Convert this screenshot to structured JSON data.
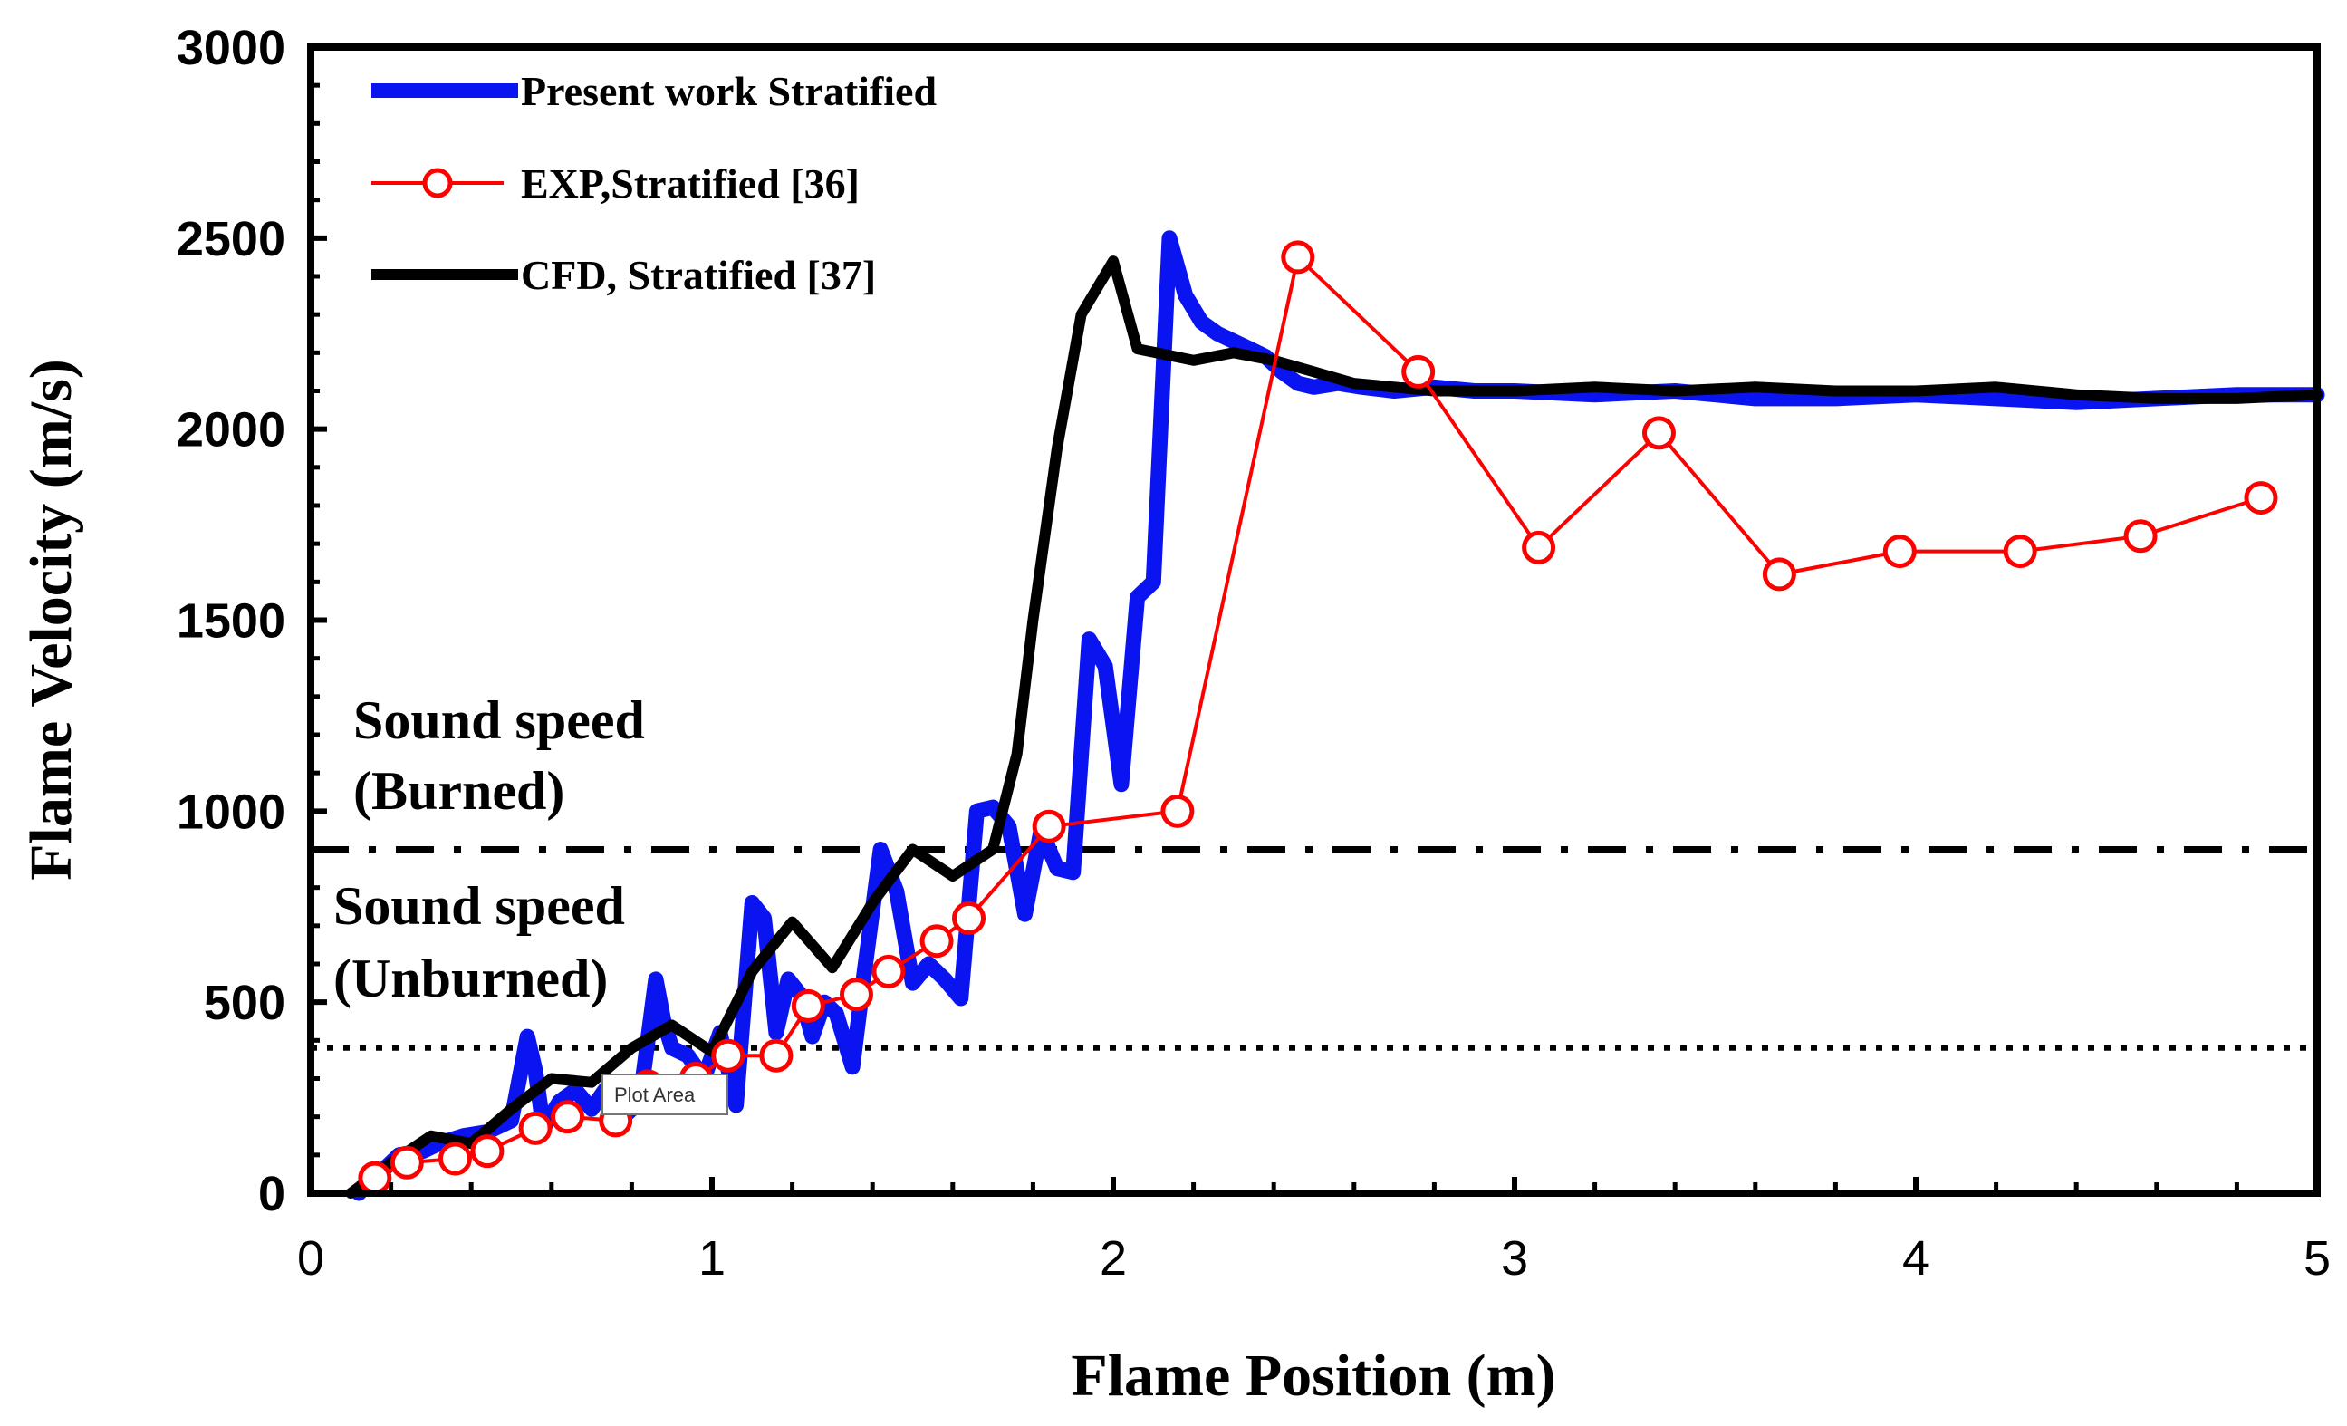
{
  "chart_data": {
    "type": "line",
    "title": "",
    "xlabel": "Flame Position (m)",
    "ylabel": "Flame Velocity (m/s)",
    "xlim": [
      0,
      5
    ],
    "ylim": [
      0,
      3000
    ],
    "xticks": [
      0,
      1,
      2,
      3,
      4,
      5
    ],
    "yticks": [
      0,
      500,
      1000,
      1500,
      2000,
      2500,
      3000
    ],
    "grid": false,
    "legend_position": "top-left",
    "series": [
      {
        "name": "Present work Stratified",
        "color": "#0a14f0",
        "style": "thick-line",
        "x": [
          0.12,
          0.18,
          0.22,
          0.28,
          0.32,
          0.38,
          0.44,
          0.5,
          0.54,
          0.56,
          0.58,
          0.62,
          0.66,
          0.7,
          0.74,
          0.78,
          0.82,
          0.86,
          0.88,
          0.9,
          0.94,
          0.98,
          1.02,
          1.06,
          1.1,
          1.13,
          1.16,
          1.19,
          1.22,
          1.25,
          1.28,
          1.31,
          1.35,
          1.38,
          1.42,
          1.46,
          1.5,
          1.54,
          1.58,
          1.62,
          1.66,
          1.7,
          1.74,
          1.78,
          1.82,
          1.86,
          1.9,
          1.94,
          1.98,
          2.02,
          2.06,
          2.1,
          2.14,
          2.18,
          2.22,
          2.26,
          2.3,
          2.34,
          2.38,
          2.42,
          2.46,
          2.5,
          2.56,
          2.62,
          2.7,
          2.8,
          2.9,
          3.0,
          3.2,
          3.4,
          3.6,
          3.8,
          4.0,
          4.2,
          4.4,
          4.6,
          4.8,
          5.0
        ],
        "values": [
          0,
          60,
          100,
          110,
          130,
          150,
          160,
          190,
          410,
          320,
          170,
          240,
          270,
          220,
          280,
          200,
          240,
          560,
          450,
          380,
          360,
          300,
          420,
          230,
          760,
          720,
          420,
          560,
          520,
          410,
          500,
          470,
          330,
          580,
          900,
          790,
          550,
          600,
          560,
          510,
          1000,
          1010,
          960,
          730,
          950,
          850,
          840,
          1450,
          1380,
          1070,
          1560,
          1600,
          2500,
          2350,
          2280,
          2250,
          2230,
          2210,
          2190,
          2150,
          2120,
          2110,
          2120,
          2110,
          2100,
          2110,
          2100,
          2100,
          2090,
          2100,
          2080,
          2080,
          2090,
          2080,
          2070,
          2080,
          2090,
          2090
        ]
      },
      {
        "name": "EXP,Stratified [36]",
        "color": "#ff0000",
        "style": "line-open-circle",
        "x": [
          0.16,
          0.24,
          0.36,
          0.44,
          0.56,
          0.64,
          0.76,
          0.84,
          0.96,
          1.04,
          1.16,
          1.24,
          1.36,
          1.44,
          1.56,
          1.64,
          1.84,
          2.16,
          2.46,
          2.76,
          3.06,
          3.36,
          3.66,
          3.96,
          4.26,
          4.56,
          4.86
        ],
        "values": [
          40,
          80,
          90,
          110,
          170,
          200,
          190,
          280,
          300,
          360,
          360,
          490,
          520,
          580,
          660,
          720,
          960,
          1000,
          2450,
          2150,
          1690,
          1990,
          1620,
          1680,
          1680,
          1720,
          1820
        ]
      },
      {
        "name": "CFD, Stratified [37]",
        "color": "#000000",
        "style": "thick-line",
        "x": [
          0.1,
          0.2,
          0.3,
          0.4,
          0.5,
          0.6,
          0.7,
          0.8,
          0.9,
          1.0,
          1.1,
          1.2,
          1.3,
          1.4,
          1.5,
          1.6,
          1.7,
          1.76,
          1.8,
          1.86,
          1.92,
          2.0,
          2.06,
          2.2,
          2.3,
          2.4,
          2.5,
          2.6,
          2.8,
          3.0,
          3.2,
          3.4,
          3.6,
          3.8,
          4.0,
          4.2,
          4.4,
          4.6,
          4.8,
          5.0
        ],
        "values": [
          0,
          80,
          150,
          130,
          220,
          300,
          290,
          380,
          440,
          370,
          580,
          710,
          590,
          760,
          900,
          830,
          900,
          1150,
          1500,
          1950,
          2300,
          2440,
          2210,
          2180,
          2200,
          2180,
          2150,
          2120,
          2100,
          2100,
          2110,
          2100,
          2110,
          2100,
          2100,
          2110,
          2090,
          2080,
          2080,
          2090
        ]
      }
    ],
    "reference_lines": [
      {
        "name": "sound-speed-burned",
        "value": 900,
        "style": "dash-dot"
      },
      {
        "name": "sound-speed-unburned",
        "value": 380,
        "style": "dotted"
      }
    ],
    "annotations": [
      {
        "lines": [
          "Sound speed",
          "(Burned)"
        ]
      },
      {
        "lines": [
          "Sound speed",
          "(Unburned)"
        ]
      }
    ],
    "tooltip": "Plot Area"
  }
}
